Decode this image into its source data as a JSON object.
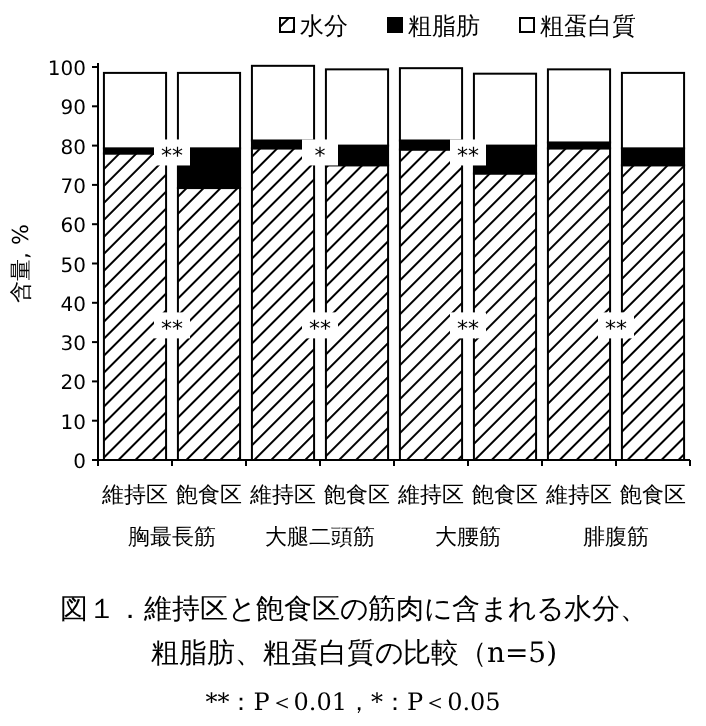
{
  "chart_data": {
    "type": "bar",
    "stacked": true,
    "title": "図１．維持区と飽食区の筋肉に含まれる水分、粗脂肪、粗蛋白質の比較（n=5)",
    "ylabel": "含量, %",
    "categories": [
      "維持区",
      "飽食区",
      "維持区",
      "飽食区",
      "維持区",
      "飽食区",
      "維持区",
      "飽食区"
    ],
    "series": [
      {
        "name": "水分",
        "color": "#000000",
        "values": [
          78,
          69.2,
          79.3,
          75,
          79,
          72.9,
          79.3,
          75
        ]
      },
      {
        "name": "粗脂肪",
        "color": "#000000",
        "values": [
          1.3,
          10.1,
          2,
          5,
          2.3,
          7.1,
          1.5,
          4.3
        ]
      },
      {
        "name": "粗蛋白質",
        "color": "#ffffff",
        "values": [
          19.2,
          19.2,
          19,
          19.4,
          18.4,
          18.3,
          18.6,
          19.2
        ]
      }
    ],
    "ylim": [
      0,
      100
    ],
    "yticks": [
      0,
      10,
      20,
      30,
      40,
      50,
      60,
      70,
      80,
      90,
      100
    ],
    "grid": false,
    "legend": "top",
    "annotations": [
      {
        "text": "**",
        "y": 78
      },
      {
        "text": "**",
        "y": 34
      },
      {
        "text": "*",
        "y": 78
      },
      {
        "text": "**",
        "y": 34
      },
      {
        "text": "**",
        "y": 78
      },
      {
        "text": "**",
        "y": 34
      },
      {
        "text": "**",
        "y": 34
      },
      "胸最長筋",
      "大腿二頭筋",
      "大腰筋",
      "腓腹筋",
      "**：P＜0.01，*：P＜0.05"
    ]
  }
}
